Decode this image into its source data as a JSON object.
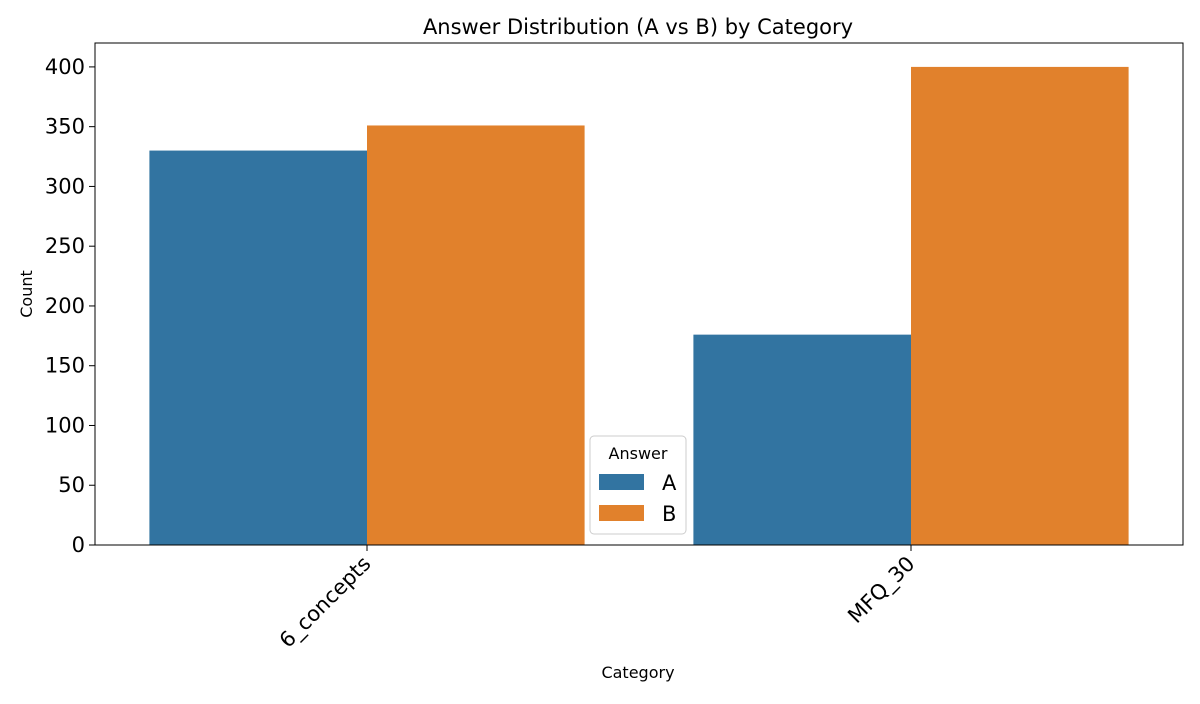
{
  "chart_data": {
    "type": "bar",
    "title": "Answer Distribution (A vs B) by Category",
    "xlabel": "Category",
    "ylabel": "Count",
    "categories": [
      "6_concepts",
      "MFQ_30"
    ],
    "series": [
      {
        "name": "A",
        "values": [
          330,
          176
        ],
        "color": "#3274a1"
      },
      {
        "name": "B",
        "values": [
          351,
          400
        ],
        "color": "#e1812c"
      }
    ],
    "ylim": [
      0,
      420
    ],
    "yticks": [
      0,
      50,
      100,
      150,
      200,
      250,
      300,
      350,
      400
    ],
    "grid": false,
    "legend": {
      "title": "Answer",
      "placement": "bottom-center"
    }
  }
}
